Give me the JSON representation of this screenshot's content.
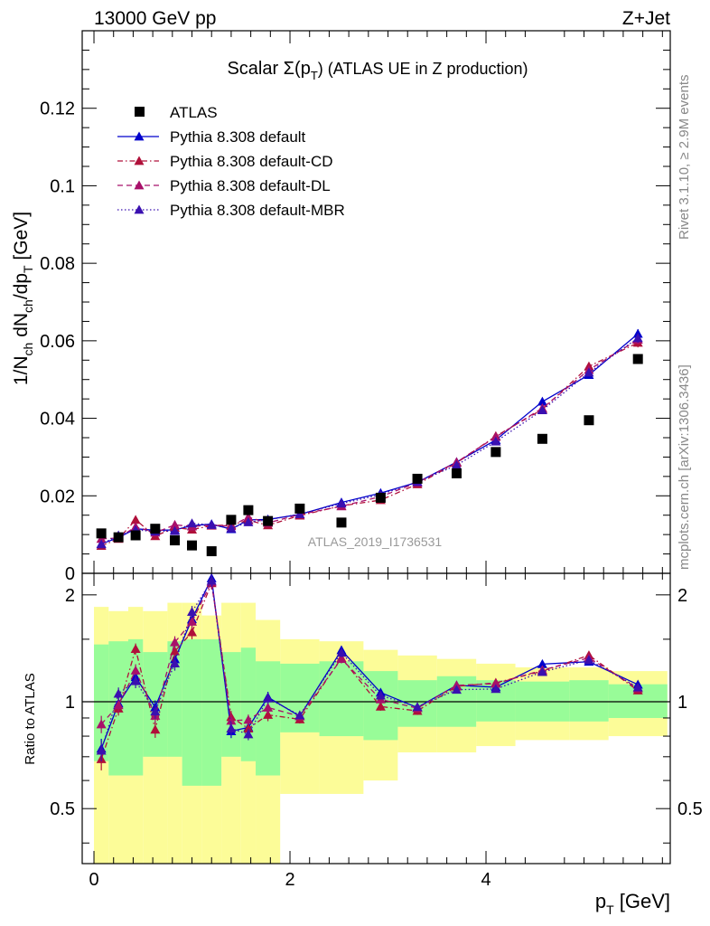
{
  "header": {
    "left": "13000 GeV pp",
    "right": "Z+Jet"
  },
  "side": {
    "top": "Rivet 3.1.10, ≥ 2.9M events",
    "bottom": "mcplots.cern.ch [arXiv:1306.3436]"
  },
  "colors": {
    "atlas": "#000000",
    "default": "#0000cc",
    "cd": "#b0103a",
    "dl": "#a8106a",
    "mbr": "#3a10b0",
    "band_inner": "#98fc98",
    "band_outer": "#fcfc98"
  },
  "chart_data": {
    "type": "line",
    "title_main": "Scalar Σ(p",
    "title_sub": "T",
    "title_rest": ") (ATLAS UE in Z production)",
    "ylabel": "1/N_ch dN_ch/dp_T [GeV]",
    "ylabel_parts": {
      "a": "1/N",
      "b": "ch",
      "c": " dN",
      "d": "ch",
      "e": "/dp",
      "f": "T",
      "g": " [GeV]"
    },
    "xlabel_main": "p",
    "xlabel_sub": "T",
    "xlabel_unit": " [GeV]",
    "ratio_ylabel": "Ratio to ATLAS",
    "watermark": "ATLAS_2019_I1736531",
    "xlim": [
      -0.12,
      5.88
    ],
    "ylim_main": [
      0,
      0.14
    ],
    "ylim_ratio": [
      0.35,
      2.3
    ],
    "ratio_log": true,
    "x_ticks": [
      0,
      2,
      4
    ],
    "y_ticks_main": [
      0,
      0.02,
      0.04,
      0.06,
      0.08,
      0.1,
      0.12
    ],
    "y_tick_labels_main": [
      "0",
      "0.02",
      "0.04",
      "0.06",
      "0.08",
      "0.1",
      "0.12"
    ],
    "y_ticks_ratio": [
      0.5,
      1,
      2
    ],
    "y_tick_labels_ratio": [
      "0.5",
      "1",
      "2"
    ],
    "x": [
      0.075,
      0.25,
      0.425,
      0.625,
      0.825,
      1.0,
      1.2,
      1.4,
      1.575,
      1.775,
      2.1,
      2.525,
      2.925,
      3.3,
      3.7,
      4.1,
      4.575,
      5.05,
      5.55
    ],
    "bin_edges": [
      0.0,
      0.15,
      0.35,
      0.5,
      0.75,
      0.9,
      1.1,
      1.3,
      1.5,
      1.65,
      1.9,
      2.3,
      2.75,
      3.1,
      3.5,
      3.9,
      4.3,
      4.85,
      5.25,
      5.85
    ],
    "atlas": [
      0.0103,
      0.0093,
      0.0098,
      0.0115,
      0.0085,
      0.0072,
      0.0057,
      0.0138,
      0.0163,
      0.0135,
      0.0167,
      0.0131,
      0.0195,
      0.0244,
      0.0258,
      0.0313,
      0.0347,
      0.0395,
      0.0553
    ],
    "band_inner": [
      [
        0.68,
        1.45
      ],
      [
        0.62,
        1.48
      ],
      [
        0.62,
        1.5
      ],
      [
        0.7,
        1.38
      ],
      [
        0.7,
        1.48
      ],
      [
        0.58,
        1.5
      ],
      [
        0.58,
        1.5
      ],
      [
        0.7,
        1.38
      ],
      [
        0.68,
        1.42
      ],
      [
        0.62,
        1.3
      ],
      [
        0.82,
        1.28
      ],
      [
        0.8,
        1.3
      ],
      [
        0.78,
        1.22
      ],
      [
        0.85,
        1.15
      ],
      [
        0.85,
        1.18
      ],
      [
        0.88,
        1.15
      ],
      [
        0.88,
        1.14
      ],
      [
        0.88,
        1.15
      ],
      [
        0.9,
        1.12
      ]
    ],
    "band_outer": [
      [
        0.35,
        1.85
      ],
      [
        0.35,
        1.8
      ],
      [
        0.35,
        1.85
      ],
      [
        0.35,
        1.8
      ],
      [
        0.35,
        1.9
      ],
      [
        0.35,
        1.9
      ],
      [
        0.35,
        1.75
      ],
      [
        0.35,
        1.9
      ],
      [
        0.35,
        1.9
      ],
      [
        0.35,
        1.7
      ],
      [
        0.55,
        1.5
      ],
      [
        0.55,
        1.48
      ],
      [
        0.6,
        1.4
      ],
      [
        0.72,
        1.35
      ],
      [
        0.72,
        1.32
      ],
      [
        0.75,
        1.28
      ],
      [
        0.78,
        1.25
      ],
      [
        0.78,
        1.25
      ],
      [
        0.8,
        1.22
      ]
    ],
    "series": [
      {
        "name": "Pythia 8.308 default",
        "key": "default",
        "style": "solid",
        "values": [
          0.0076,
          0.0092,
          0.0115,
          0.0111,
          0.0112,
          0.0123,
          0.0127,
          0.0114,
          0.0138,
          0.0139,
          0.0152,
          0.0183,
          0.0207,
          0.0235,
          0.0287,
          0.0344,
          0.0443,
          0.0512,
          0.0618
        ],
        "err": [
          0.0005,
          0.0004,
          0.0005,
          0.0005,
          0.0005,
          0.0005,
          0.0005,
          0.0005,
          0.0005,
          0.0005,
          0.0004,
          0.0005,
          0.0005,
          0.0006,
          0.0006,
          0.0007,
          0.0008,
          0.0009,
          0.0012
        ]
      },
      {
        "name": "Pythia 8.308 default-CD",
        "key": "cd",
        "style": "dashdot",
        "values": [
          0.0071,
          0.0089,
          0.0138,
          0.0096,
          0.0118,
          0.0113,
          0.0123,
          0.0125,
          0.0137,
          0.0124,
          0.0149,
          0.0174,
          0.0189,
          0.023,
          0.0285,
          0.0354,
          0.0423,
          0.0534,
          0.0595
        ],
        "err": [
          0.0005,
          0.0004,
          0.0005,
          0.0005,
          0.0005,
          0.0005,
          0.0005,
          0.0005,
          0.0005,
          0.0005,
          0.0004,
          0.0005,
          0.0005,
          0.0006,
          0.0006,
          0.0007,
          0.0008,
          0.0009,
          0.0012
        ]
      },
      {
        "name": "Pythia 8.308 default-DL",
        "key": "dl",
        "style": "dashed",
        "values": [
          0.0089,
          0.0091,
          0.012,
          0.0105,
          0.0125,
          0.0121,
          0.0124,
          0.0122,
          0.0145,
          0.013,
          0.0152,
          0.0173,
          0.0198,
          0.0234,
          0.0287,
          0.0352,
          0.0426,
          0.0525,
          0.0603
        ],
        "err": [
          0.0005,
          0.0004,
          0.0005,
          0.0005,
          0.0005,
          0.0005,
          0.0005,
          0.0005,
          0.0005,
          0.0005,
          0.0004,
          0.0005,
          0.0005,
          0.0006,
          0.0006,
          0.0007,
          0.0008,
          0.0009,
          0.0012
        ]
      },
      {
        "name": "Pythia 8.308 default-MBR",
        "key": "mbr",
        "style": "dotted",
        "values": [
          0.0075,
          0.0098,
          0.0112,
          0.0108,
          0.0109,
          0.0129,
          0.0125,
          0.0116,
          0.0132,
          0.0138,
          0.0153,
          0.018,
          0.0203,
          0.0236,
          0.0279,
          0.034,
          0.0421,
          0.0518,
          0.0607
        ],
        "err": [
          0.0005,
          0.0004,
          0.0005,
          0.0005,
          0.0005,
          0.0005,
          0.0005,
          0.0005,
          0.0005,
          0.0005,
          0.0004,
          0.0005,
          0.0005,
          0.0006,
          0.0006,
          0.0007,
          0.0008,
          0.0009,
          0.0012
        ]
      }
    ],
    "legend": {
      "placement": "top-left",
      "data_label": "ATLAS"
    },
    "grid": false
  }
}
